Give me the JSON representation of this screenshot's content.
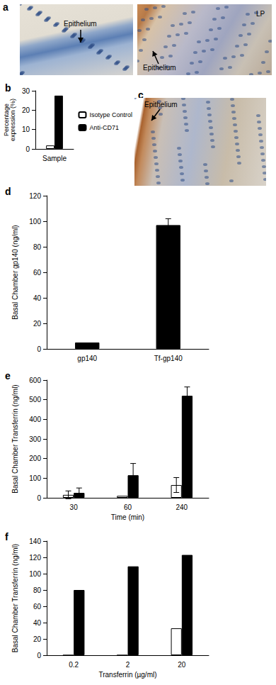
{
  "figure_panels": [
    {
      "label": "a",
      "images": [
        {
          "annotations": [
            "Epithelium"
          ]
        },
        {
          "annotations": [
            "Epithelium",
            "LP"
          ]
        }
      ]
    },
    {
      "label": "c",
      "images": [
        {
          "annotations": [
            "Epithelium"
          ]
        }
      ]
    }
  ],
  "chart_data": [
    {
      "type": "bar",
      "title": "b",
      "categories": [
        "Sample"
      ],
      "y_label": "Percentage expression (%)",
      "ylim": [
        0,
        30
      ],
      "yticks": [
        0,
        10,
        20,
        30
      ],
      "grid": false,
      "legend": "right",
      "series": [
        {
          "name": "Isotype Control",
          "color": "#ffffff",
          "values": [
            1.8
          ]
        },
        {
          "name": "Anti-CD71",
          "color": "#000000",
          "values": [
            27.5
          ]
        }
      ]
    },
    {
      "type": "bar",
      "title": "d",
      "categories": [
        "gp140",
        "Tf-gp140"
      ],
      "y_label": "Basal Chamber gp140 (ng/ml)",
      "ylim": [
        0,
        120
      ],
      "yticks": [
        0,
        20,
        40,
        60,
        80,
        100,
        120
      ],
      "grid": false,
      "series": [
        {
          "color": "#000000",
          "values": [
            5,
            97
          ],
          "error": [
            null,
            5
          ]
        }
      ]
    },
    {
      "type": "bar",
      "title": "e",
      "categories": [
        "30",
        "60",
        "240"
      ],
      "x_label": "Time (min)",
      "y_label": "Basal Chamber Transferrin (ng/ml)",
      "ylim": [
        0,
        600
      ],
      "yticks": [
        0,
        100,
        200,
        300,
        400,
        500,
        600
      ],
      "grid": false,
      "series": [
        {
          "color": "#ffffff",
          "values": [
            15,
            10,
            65
          ],
          "error": [
            20,
            null,
            38
          ]
        },
        {
          "color": "#000000",
          "values": [
            25,
            115,
            520
          ],
          "error": [
            25,
            60,
            45
          ]
        }
      ]
    },
    {
      "type": "bar",
      "title": "f",
      "categories": [
        "0.2",
        "2",
        "20"
      ],
      "x_label": "Transferrin (µg/ml)",
      "y_label": "Basal Chamber Transferrin (ng/ml)",
      "ylim": [
        0,
        140
      ],
      "yticks": [
        0,
        20,
        40,
        60,
        80,
        100,
        120,
        140
      ],
      "grid": false,
      "series": [
        {
          "color": "#ffffff",
          "values": [
            0,
            0,
            33
          ]
        },
        {
          "color": "#000000",
          "values": [
            80,
            109,
            123
          ]
        }
      ]
    }
  ]
}
